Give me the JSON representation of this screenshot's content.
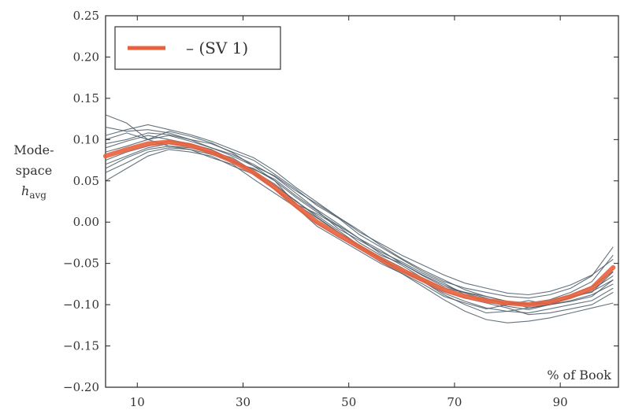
{
  "chart_data": {
    "type": "line",
    "title": "",
    "xlabel": "% of Book",
    "ylabel": "Mode-space h_avg",
    "ylabel_lines": [
      "Mode-",
      "space"
    ],
    "ylabel_math_base": "h",
    "ylabel_math_sub": "avg",
    "xlim": [
      4,
      101
    ],
    "ylim": [
      -0.2,
      0.25
    ],
    "x_ticks": [
      10,
      30,
      50,
      70,
      90
    ],
    "x_tick_labels": [
      "10",
      "30",
      "50",
      "70",
      "90"
    ],
    "y_ticks": [
      0.25,
      0.2,
      0.15,
      0.1,
      0.05,
      0.0,
      -0.05,
      -0.1,
      -0.15,
      -0.2
    ],
    "y_tick_labels": [
      "0.25",
      "0.20",
      "0.15",
      "0.10",
      "0.05",
      "0.00",
      "−0.05",
      "−0.10",
      "−0.15",
      "−0.20"
    ],
    "grid": false,
    "legend_position": "top-left",
    "legend": [
      {
        "label": "– (SV 1)",
        "color": "#e8613c"
      }
    ],
    "main_series": {
      "name": "– (SV 1)",
      "color": "#e8613c",
      "x": [
        4,
        8,
        12,
        16,
        20,
        24,
        28,
        32,
        36,
        40,
        44,
        48,
        52,
        56,
        60,
        64,
        68,
        72,
        76,
        80,
        84,
        88,
        92,
        96,
        100
      ],
      "y": [
        0.08,
        0.088,
        0.095,
        0.097,
        0.093,
        0.085,
        0.074,
        0.06,
        0.042,
        0.02,
        0.0,
        -0.015,
        -0.03,
        -0.045,
        -0.058,
        -0.07,
        -0.082,
        -0.09,
        -0.095,
        -0.098,
        -0.1,
        -0.097,
        -0.09,
        -0.08,
        -0.055
      ]
    },
    "sample_series_color": "#4a5a66",
    "sample_series": [
      {
        "x": [
          4,
          8,
          12,
          16,
          20,
          24,
          28,
          32,
          36,
          40,
          44,
          48,
          52,
          56,
          60,
          64,
          68,
          72,
          76,
          80,
          84,
          88,
          92,
          96,
          100
        ],
        "y": [
          0.09,
          0.098,
          0.105,
          0.1,
          0.095,
          0.088,
          0.072,
          0.065,
          0.05,
          0.022,
          0.01,
          -0.005,
          -0.025,
          -0.04,
          -0.05,
          -0.065,
          -0.078,
          -0.085,
          -0.09,
          -0.096,
          -0.104,
          -0.1,
          -0.09,
          -0.085,
          -0.06
        ]
      },
      {
        "x": [
          4,
          8,
          12,
          16,
          20,
          24,
          28,
          32,
          36,
          40,
          44,
          48,
          52,
          56,
          60,
          64,
          68,
          72,
          76,
          80,
          84,
          88,
          92,
          96,
          100
        ],
        "y": [
          0.06,
          0.072,
          0.085,
          0.09,
          0.088,
          0.078,
          0.07,
          0.052,
          0.035,
          0.018,
          -0.005,
          -0.02,
          -0.035,
          -0.05,
          -0.062,
          -0.075,
          -0.09,
          -0.098,
          -0.105,
          -0.1,
          -0.095,
          -0.1,
          -0.096,
          -0.09,
          -0.07
        ]
      },
      {
        "x": [
          4,
          8,
          12,
          16,
          20,
          24,
          28,
          32,
          36,
          40,
          44,
          48,
          52,
          56,
          60,
          64,
          68,
          72,
          76,
          80,
          84,
          88,
          92,
          96,
          100
        ],
        "y": [
          0.1,
          0.108,
          0.1,
          0.105,
          0.098,
          0.09,
          0.082,
          0.07,
          0.055,
          0.035,
          0.015,
          -0.002,
          -0.02,
          -0.038,
          -0.052,
          -0.068,
          -0.08,
          -0.085,
          -0.092,
          -0.1,
          -0.098,
          -0.094,
          -0.085,
          -0.072,
          -0.04
        ]
      },
      {
        "x": [
          4,
          8,
          12,
          16,
          20,
          24,
          28,
          32,
          36,
          40,
          44,
          48,
          52,
          56,
          60,
          64,
          68,
          72,
          76,
          80,
          84,
          88,
          92,
          96,
          100
        ],
        "y": [
          0.05,
          0.065,
          0.08,
          0.088,
          0.085,
          0.08,
          0.068,
          0.058,
          0.04,
          0.022,
          0.005,
          -0.012,
          -0.03,
          -0.045,
          -0.06,
          -0.072,
          -0.088,
          -0.1,
          -0.11,
          -0.108,
          -0.11,
          -0.105,
          -0.1,
          -0.095,
          -0.08
        ]
      },
      {
        "x": [
          4,
          8,
          12,
          16,
          20,
          24,
          28,
          32,
          36,
          40,
          44,
          48,
          52,
          56,
          60,
          64,
          68,
          72,
          76,
          80,
          84,
          88,
          92,
          96,
          100
        ],
        "y": [
          0.115,
          0.11,
          0.112,
          0.108,
          0.1,
          0.095,
          0.085,
          0.075,
          0.058,
          0.04,
          0.02,
          0.005,
          -0.015,
          -0.03,
          -0.045,
          -0.06,
          -0.072,
          -0.08,
          -0.085,
          -0.09,
          -0.092,
          -0.088,
          -0.08,
          -0.065,
          -0.03
        ]
      },
      {
        "x": [
          4,
          8,
          12,
          16,
          20,
          24,
          28,
          32,
          36,
          40,
          44,
          48,
          52,
          56,
          60,
          64,
          68,
          72,
          76,
          80,
          84,
          88,
          92,
          96,
          100
        ],
        "y": [
          0.07,
          0.08,
          0.09,
          0.095,
          0.092,
          0.085,
          0.078,
          0.062,
          0.046,
          0.025,
          0.008,
          -0.01,
          -0.028,
          -0.042,
          -0.055,
          -0.07,
          -0.084,
          -0.092,
          -0.098,
          -0.104,
          -0.112,
          -0.11,
          -0.105,
          -0.1,
          -0.085
        ]
      },
      {
        "x": [
          4,
          8,
          12,
          16,
          20,
          24,
          28,
          32,
          36,
          40,
          44,
          48,
          52,
          56,
          60,
          64,
          68,
          72,
          76,
          80,
          84,
          88,
          92,
          96,
          100
        ],
        "y": [
          0.13,
          0.12,
          0.1,
          0.092,
          0.088,
          0.082,
          0.074,
          0.064,
          0.052,
          0.032,
          0.014,
          -0.008,
          -0.022,
          -0.036,
          -0.048,
          -0.062,
          -0.074,
          -0.088,
          -0.096,
          -0.102,
          -0.106,
          -0.1,
          -0.095,
          -0.088,
          -0.075
        ]
      },
      {
        "x": [
          4,
          8,
          12,
          16,
          20,
          24,
          28,
          32,
          36,
          40,
          44,
          48,
          52,
          56,
          60,
          64,
          68,
          72,
          76,
          80,
          84,
          88,
          92,
          96,
          100
        ],
        "y": [
          0.085,
          0.092,
          0.1,
          0.11,
          0.104,
          0.096,
          0.084,
          0.068,
          0.05,
          0.03,
          0.012,
          -0.004,
          -0.02,
          -0.034,
          -0.05,
          -0.064,
          -0.076,
          -0.086,
          -0.094,
          -0.098,
          -0.1,
          -0.096,
          -0.088,
          -0.078,
          -0.06
        ]
      },
      {
        "x": [
          4,
          8,
          12,
          16,
          20,
          24,
          28,
          32,
          36,
          40,
          44,
          48,
          52,
          56,
          60,
          64,
          68,
          72,
          76,
          80,
          84,
          88,
          92,
          96,
          100
        ],
        "y": [
          0.075,
          0.085,
          0.092,
          0.098,
          0.094,
          0.088,
          0.076,
          0.06,
          0.04,
          0.018,
          -0.002,
          -0.018,
          -0.032,
          -0.048,
          -0.062,
          -0.078,
          -0.094,
          -0.108,
          -0.118,
          -0.122,
          -0.12,
          -0.116,
          -0.11,
          -0.104,
          -0.098
        ]
      },
      {
        "x": [
          4,
          8,
          12,
          16,
          20,
          24,
          28,
          32,
          36,
          40,
          44,
          48,
          52,
          56,
          60,
          64,
          68,
          72,
          76,
          80,
          84,
          88,
          92,
          96,
          100
        ],
        "y": [
          0.095,
          0.1,
          0.108,
          0.106,
          0.1,
          0.09,
          0.08,
          0.068,
          0.056,
          0.038,
          0.022,
          0.006,
          -0.012,
          -0.026,
          -0.04,
          -0.052,
          -0.064,
          -0.074,
          -0.08,
          -0.086,
          -0.088,
          -0.084,
          -0.076,
          -0.064,
          -0.045
        ]
      },
      {
        "x": [
          4,
          8,
          12,
          16,
          20,
          24,
          28,
          32,
          36,
          40,
          44,
          48,
          52,
          56,
          60,
          64,
          68,
          72,
          76,
          80,
          84,
          88,
          92,
          96,
          100
        ],
        "y": [
          0.065,
          0.078,
          0.088,
          0.092,
          0.09,
          0.084,
          0.074,
          0.06,
          0.044,
          0.026,
          0.006,
          -0.012,
          -0.028,
          -0.044,
          -0.058,
          -0.072,
          -0.086,
          -0.096,
          -0.104,
          -0.108,
          -0.104,
          -0.1,
          -0.092,
          -0.082,
          -0.065
        ]
      },
      {
        "x": [
          4,
          8,
          12,
          16,
          20,
          24,
          28,
          32,
          36,
          40,
          44,
          48,
          52,
          56,
          60,
          64,
          68,
          72,
          76,
          80,
          84,
          88,
          92,
          96,
          100
        ],
        "y": [
          0.105,
          0.112,
          0.118,
          0.112,
          0.106,
          0.098,
          0.088,
          0.078,
          0.062,
          0.042,
          0.024,
          0.006,
          -0.01,
          -0.028,
          -0.044,
          -0.058,
          -0.07,
          -0.082,
          -0.09,
          -0.096,
          -0.1,
          -0.098,
          -0.092,
          -0.084,
          -0.07
        ]
      }
    ]
  }
}
